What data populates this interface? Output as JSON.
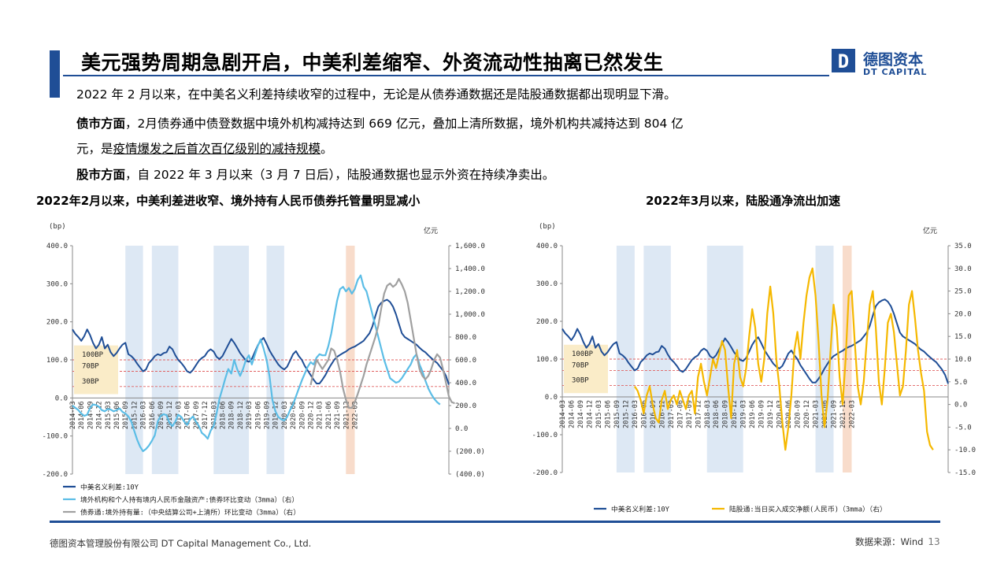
{
  "header": {
    "title": "美元强势周期急剧开启，中美利差缩窄、外资流动性抽离已然发生",
    "logo_cn": "德图资本",
    "logo_en": "DT CAPITAL",
    "logo_letter": "D"
  },
  "body": {
    "p1": "2022 年 2 月以来，在中美名义利差持续收窄的过程中，无论是从债券通数据还是陆股通数据都出现明显下滑。",
    "p2_bold": "债市方面",
    "p2_text": "，2月债券通中债登数据中境外机构减持达到 669 亿元，叠加上清所数据，境外机构共减持达到 804 亿",
    "p3_pre": "元，是",
    "p3_underline": "疫情爆发之后首次百亿级别的减持规模",
    "p3_post": "。",
    "p4_bold": "股市方面",
    "p4_text": "，自 2022 年 3 月以来（3 月 7 日后），陆股通数据也显示外资在持续净卖出。"
  },
  "chart_left_title": "2022年2月以来，中美利差进收窄、境外持有人民币债券托管量明显减小",
  "chart_right_title": "2022年3月以来，陆股通净流出加速",
  "footer": {
    "company": "德图资本管理股份有限公司  DT Capital Management Co., Ltd.",
    "source": "数据来源：Wind",
    "page": "13"
  },
  "colors": {
    "brand": "#1f4e96",
    "spread": "#1f4e96",
    "cyan": "#5bbde6",
    "gray": "#a0a0a0",
    "gold": "#f5b800",
    "shade_blue": "#dde8f4",
    "shade_orange": "#f8dccb",
    "ref_line": "#e06060",
    "ref_box": "#faecc8"
  },
  "chart_data": [
    {
      "type": "line",
      "title": "2022年2月以来，中美利差进收窄、境外持有人民币债券托管量明显减小",
      "left_unit": "(bp)",
      "right_unit": "亿元",
      "ylim_left": [
        -200,
        400
      ],
      "ylim_right": [
        -400,
        1600
      ],
      "yticks_left": [
        "400.0",
        "300.0",
        "200.0",
        "100.0",
        "0.0",
        "-100.0",
        "-200.0"
      ],
      "yticks_right": [
        "1,600.0",
        "1,400.0",
        "1,200.0",
        "1,000.0",
        "800.0",
        "600.0",
        "400.0",
        "200.0",
        "0.0",
        "(200.0)",
        "(400.0)"
      ],
      "xticks": [
        "2014-03",
        "2014-06",
        "2014-09",
        "2014-12",
        "2015-03",
        "2015-06",
        "2015-09",
        "2015-12",
        "2016-03",
        "2016-06",
        "2016-09",
        "2016-12",
        "2017-03",
        "2017-06",
        "2017-09",
        "2017-12",
        "2018-03",
        "2018-06",
        "2018-09",
        "2018-12",
        "2019-03",
        "2019-06",
        "2019-09",
        "2019-12",
        "2020-03",
        "2020-06",
        "2020-09",
        "2020-12",
        "2021-03",
        "2021-06",
        "2021-09",
        "2021-12",
        "2022-03"
      ],
      "ref_lines": [
        {
          "label": "100BP",
          "value": 100
        },
        {
          "label": "70BP",
          "value": 70
        },
        {
          "label": "30BP",
          "value": 30
        }
      ],
      "shaded_periods": [
        {
          "start": "2015-09",
          "end": "2016-03",
          "color": "blue"
        },
        {
          "start": "2016-06",
          "end": "2017-03",
          "color": "blue"
        },
        {
          "start": "2018-03",
          "end": "2019-03",
          "color": "blue"
        },
        {
          "start": "2019-09",
          "end": "2020-03",
          "color": "blue"
        },
        {
          "start": "2021-12",
          "end": "2022-03",
          "color": "orange"
        }
      ],
      "series": [
        {
          "name": "中美名义利差:10Y",
          "axis": "left",
          "color": "#1f4e96",
          "values": [
            180,
            168,
            160,
            150,
            162,
            180,
            165,
            145,
            130,
            140,
            160,
            130,
            140,
            120,
            110,
            118,
            130,
            140,
            145,
            115,
            110,
            102,
            90,
            80,
            70,
            75,
            92,
            100,
            110,
            115,
            112,
            118,
            120,
            135,
            128,
            112,
            100,
            92,
            82,
            70,
            66,
            74,
            86,
            98,
            105,
            110,
            122,
            128,
            122,
            108,
            102,
            110,
            125,
            140,
            155,
            145,
            132,
            118,
            108,
            98,
            95,
            103,
            120,
            138,
            150,
            158,
            142,
            125,
            112,
            100,
            88,
            80,
            75,
            82,
            98,
            115,
            123,
            110,
            100,
            84,
            72,
            60,
            48,
            38,
            38,
            48,
            60,
            75,
            88,
            100,
            108,
            113,
            118,
            122,
            128,
            132,
            135,
            140,
            145,
            150,
            160,
            170,
            188,
            215,
            240,
            250,
            255,
            258,
            252,
            240,
            220,
            195,
            170,
            160,
            155,
            150,
            145,
            140,
            132,
            125,
            120,
            112,
            105,
            98,
            92,
            82,
            72,
            58,
            35
          ]
        },
        {
          "name": "境外机构和个人持有境内人民币金融资产:债券环比变动（3mma）（右）",
          "axis": "right",
          "color": "#5bbde6",
          "values": [
            200,
            180,
            160,
            130,
            110,
            120,
            180,
            210,
            205,
            190,
            160,
            150,
            170,
            165,
            150,
            160,
            175,
            145,
            130,
            105,
            60,
            -20,
            -100,
            -160,
            -200,
            -180,
            -150,
            -110,
            -60,
            60,
            110,
            125,
            115,
            50,
            20,
            60,
            120,
            100,
            60,
            30,
            80,
            105,
            60,
            20,
            -40,
            -60,
            -90,
            -20,
            20,
            130,
            260,
            350,
            440,
            520,
            480,
            600,
            520,
            460,
            520,
            600,
            640,
            560,
            640,
            720,
            780,
            700,
            600,
            460,
            250,
            150,
            100,
            80,
            70,
            100,
            160,
            210,
            280,
            350,
            420,
            480,
            540,
            580,
            560,
            620,
            650,
            640,
            640,
            720,
            830,
            980,
            1120,
            1220,
            1240,
            1200,
            1230,
            1180,
            1220,
            1300,
            1340,
            1240,
            1200,
            1100,
            1000,
            900,
            800,
            700,
            600,
            520,
            440,
            420,
            400,
            410,
            440,
            480,
            520,
            560,
            620,
            650,
            560,
            500,
            420,
            350,
            300,
            260,
            230,
            210
          ]
        },
        {
          "name": "债券通:境外持有量:（中央结算公司+上清所）环比变动（3mma）（右）",
          "axis": "right",
          "color": "#a0a0a0",
          "values": [
            null,
            null,
            null,
            null,
            null,
            null,
            null,
            null,
            null,
            null,
            null,
            null,
            null,
            null,
            null,
            null,
            null,
            null,
            null,
            null,
            null,
            null,
            null,
            null,
            null,
            null,
            null,
            null,
            null,
            null,
            null,
            null,
            null,
            null,
            null,
            null,
            null,
            null,
            null,
            null,
            null,
            null,
            null,
            null,
            null,
            null,
            null,
            null,
            null,
            null,
            null,
            null,
            null,
            null,
            null,
            null,
            null,
            null,
            null,
            null,
            null,
            null,
            null,
            null,
            null,
            null,
            null,
            null,
            null,
            null,
            null,
            null,
            null,
            null,
            null,
            null,
            null,
            null,
            null,
            null,
            null,
            380,
            500,
            600,
            560,
            520,
            560,
            600,
            700,
            680,
            600,
            500,
            350,
            250,
            180,
            180,
            230,
            300,
            380,
            460,
            560,
            640,
            720,
            800,
            900,
            1050,
            1180,
            1250,
            1270,
            1240,
            1260,
            1310,
            1260,
            1200,
            1100,
            950,
            800,
            650,
            520,
            460,
            430,
            460,
            520,
            600,
            650,
            620,
            520,
            400,
            280,
            230,
            220
          ]
        }
      ]
    },
    {
      "type": "line",
      "title": "2022年3月以来，陆股通净流出加速",
      "left_unit": "(bp)",
      "right_unit": "亿元",
      "ylim_left": [
        -200,
        400
      ],
      "ylim_right": [
        -15,
        35
      ],
      "yticks_left": [
        "400.0",
        "300.0",
        "200.0",
        "100.0",
        "0.0",
        "-100.0",
        "-200.0"
      ],
      "yticks_right": [
        "35.0",
        "30.0",
        "25.0",
        "20.0",
        "15.0",
        "10.0",
        "5.0",
        "0.0",
        "-5.0",
        "-10.0",
        "-15.0"
      ],
      "xticks": [
        "2014-03",
        "2014-06",
        "2014-09",
        "2014-12",
        "2015-03",
        "2015-06",
        "2015-09",
        "2015-12",
        "2016-03",
        "2016-06",
        "2016-09",
        "2016-12",
        "2017-03",
        "2017-06",
        "2017-09",
        "2017-12",
        "2018-03",
        "2018-06",
        "2018-09",
        "2018-12",
        "2019-03",
        "2019-06",
        "2019-09",
        "2019-12",
        "2020-03",
        "2020-06",
        "2020-09",
        "2020-12",
        "2021-03",
        "2021-06",
        "2021-09",
        "2021-12",
        "2022-03"
      ],
      "ref_lines": [
        {
          "label": "100BP",
          "value": 100
        },
        {
          "label": "70BP",
          "value": 70
        },
        {
          "label": "30BP",
          "value": 30
        }
      ],
      "shaded_periods": [
        {
          "start": "2015-09",
          "end": "2016-03",
          "color": "blue"
        },
        {
          "start": "2016-06",
          "end": "2017-03",
          "color": "blue"
        },
        {
          "start": "2018-03",
          "end": "2019-03",
          "color": "blue"
        },
        {
          "start": "2021-03",
          "end": "2021-09",
          "color": "blue"
        },
        {
          "start": "2021-12",
          "end": "2022-03",
          "color": "orange"
        }
      ],
      "series": [
        {
          "name": "中美名义利差:10Y",
          "axis": "left",
          "color": "#1f4e96",
          "values": [
            180,
            168,
            160,
            150,
            162,
            180,
            165,
            145,
            130,
            140,
            160,
            130,
            140,
            120,
            110,
            118,
            130,
            140,
            145,
            115,
            110,
            102,
            90,
            80,
            70,
            75,
            92,
            100,
            110,
            115,
            112,
            118,
            120,
            135,
            128,
            112,
            100,
            92,
            82,
            70,
            66,
            74,
            86,
            98,
            105,
            110,
            122,
            128,
            122,
            108,
            102,
            110,
            125,
            140,
            155,
            145,
            132,
            118,
            108,
            98,
            95,
            103,
            120,
            138,
            150,
            158,
            142,
            125,
            112,
            100,
            88,
            80,
            75,
            82,
            98,
            115,
            123,
            110,
            100,
            84,
            72,
            60,
            48,
            38,
            38,
            48,
            60,
            75,
            88,
            100,
            108,
            113,
            118,
            122,
            128,
            132,
            135,
            140,
            145,
            150,
            160,
            170,
            188,
            215,
            240,
            250,
            255,
            258,
            252,
            240,
            220,
            195,
            170,
            160,
            155,
            150,
            145,
            140,
            132,
            125,
            120,
            112,
            105,
            98,
            92,
            82,
            72,
            58,
            35
          ]
        },
        {
          "name": "陆股通:当日买入成交净额(人民币)（3mma）（右）",
          "axis": "right",
          "color": "#f5b800",
          "values": [
            null,
            null,
            null,
            null,
            null,
            null,
            null,
            null,
            null,
            null,
            null,
            null,
            null,
            null,
            null,
            null,
            null,
            null,
            null,
            null,
            null,
            null,
            null,
            null,
            4,
            3,
            1,
            -2,
            2,
            4,
            0,
            -3,
            -4,
            1,
            3,
            -1,
            1,
            2,
            0,
            3,
            1,
            -1,
            2,
            3,
            -2,
            6,
            9,
            5,
            2,
            6,
            10,
            8,
            11,
            14,
            12,
            4,
            -3,
            9,
            12,
            6,
            4,
            8,
            15,
            21,
            17,
            9,
            5,
            10,
            20,
            26,
            20,
            10,
            4,
            -4,
            -10,
            -5,
            2,
            12,
            16,
            10,
            18,
            24,
            28,
            30,
            24,
            14,
            2,
            -5,
            1,
            12,
            22,
            17,
            6,
            0,
            10,
            24,
            25,
            14,
            4,
            0,
            5,
            14,
            22,
            25,
            17,
            5,
            0,
            8,
            18,
            20,
            16,
            9,
            2,
            4,
            12,
            22,
            25,
            19,
            12,
            7,
            3,
            -6,
            -9,
            -10
          ]
        }
      ]
    }
  ]
}
